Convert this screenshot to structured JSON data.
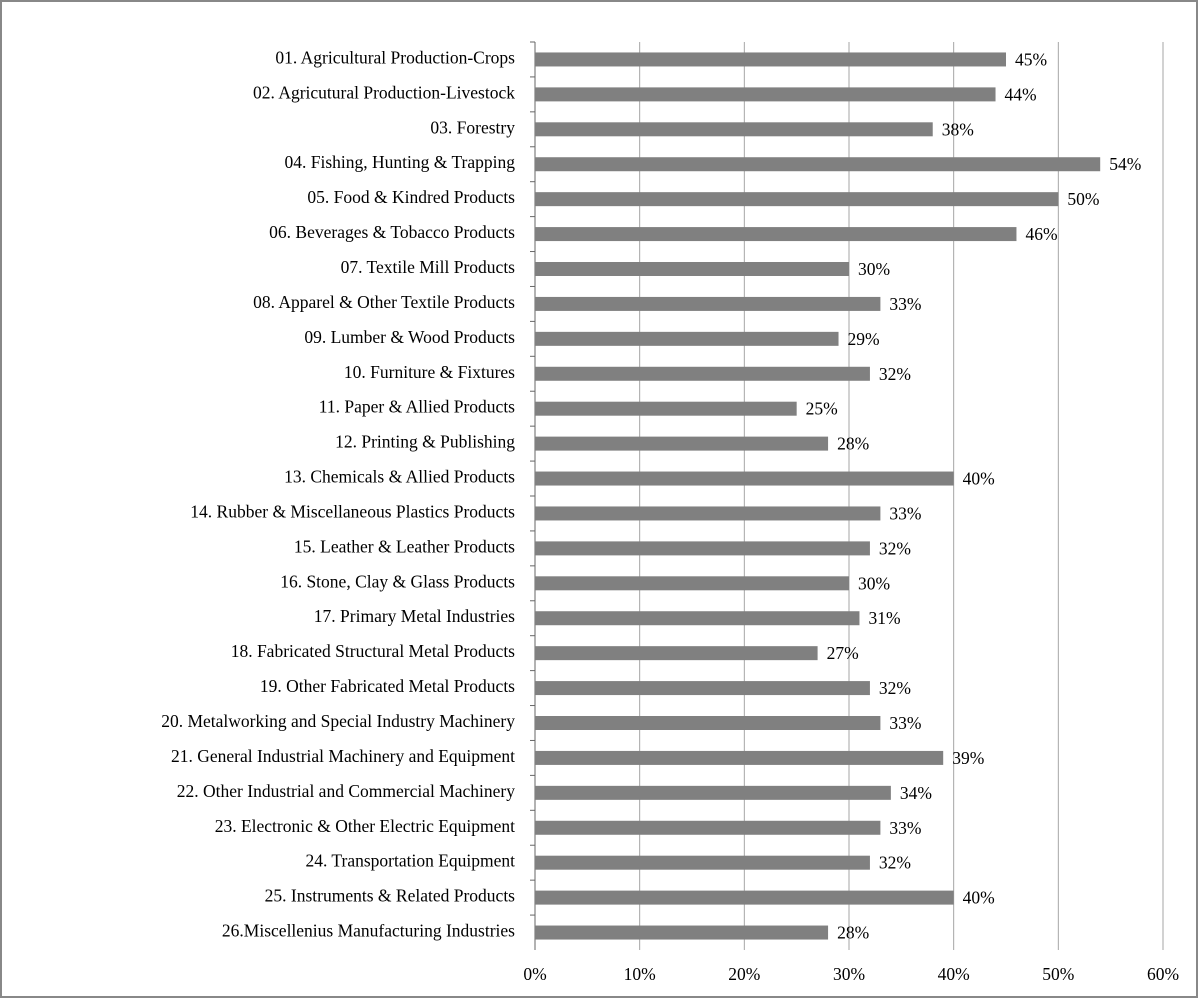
{
  "chart_data": {
    "type": "hbar",
    "categories": [
      "01. Agricultural Production-Crops",
      "02. Agricutural Production-Livestock",
      "03. Forestry",
      "04. Fishing, Hunting & Trapping",
      "05. Food & Kindred Products",
      "06. Beverages & Tobacco Products",
      "07. Textile Mill Products",
      "08. Apparel & Other Textile Products",
      "09. Lumber & Wood Products",
      "10. Furniture & Fixtures",
      "11. Paper & Allied Products",
      "12. Printing & Publishing",
      "13. Chemicals & Allied Products",
      "14. Rubber & Miscellaneous Plastics Products",
      "15. Leather & Leather Products",
      "16. Stone, Clay & Glass Products",
      "17. Primary Metal Industries",
      "18. Fabricated Structural Metal Products",
      "19. Other Fabricated Metal Products",
      "20. Metalworking and Special Industry Machinery",
      "21. General Industrial Machinery and Equipment",
      "22. Other Industrial and Commercial Machinery",
      "23. Electronic & Other Electric Equipment",
      "24. Transportation Equipment",
      "25. Instruments & Related Products",
      "26.Miscellenius Manufacturing Industries"
    ],
    "values": [
      45,
      44,
      38,
      54,
      50,
      46,
      30,
      33,
      29,
      32,
      25,
      28,
      40,
      33,
      32,
      30,
      31,
      27,
      32,
      33,
      39,
      34,
      33,
      32,
      40,
      28
    ],
    "value_labels": [
      "45%",
      "44%",
      "38%",
      "54%",
      "50%",
      "46%",
      "30%",
      "33%",
      "29%",
      "32%",
      "25%",
      "28%",
      "40%",
      "33%",
      "32%",
      "30%",
      "31%",
      "27%",
      "32%",
      "33%",
      "39%",
      "34%",
      "33%",
      "32%",
      "40%",
      "28%"
    ],
    "color": "#808080",
    "xlim": [
      0,
      60
    ],
    "xticks": [
      {
        "value": 0,
        "label": "0%"
      },
      {
        "value": 10,
        "label": "10%"
      },
      {
        "value": 20,
        "label": "20%"
      },
      {
        "value": 30,
        "label": "30%"
      },
      {
        "value": 40,
        "label": "40%"
      },
      {
        "value": 50,
        "label": "50%"
      },
      {
        "value": 60,
        "label": "60%"
      }
    ],
    "grid": true
  }
}
